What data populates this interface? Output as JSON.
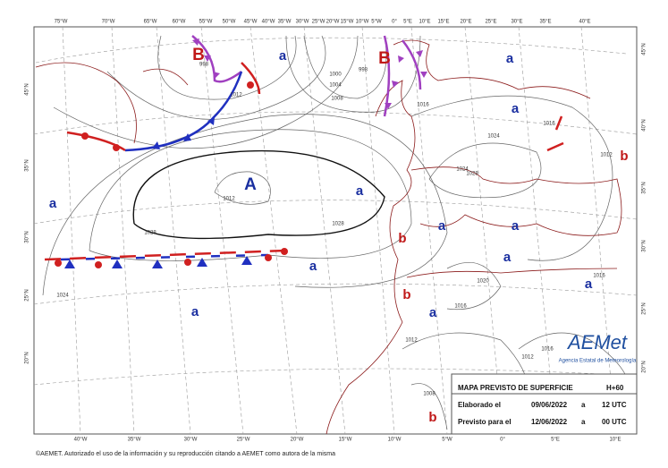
{
  "map": {
    "centers": [
      "B",
      "a",
      "B",
      "a",
      "a",
      "b",
      "A",
      "a",
      "a",
      "a",
      "b",
      "a",
      "a",
      "a",
      "b",
      "a",
      "a",
      "a",
      "b"
    ],
    "isobar_labels": [
      "998",
      "1000",
      "998",
      "1004",
      "1008",
      "1012",
      "1012",
      "1028",
      "1028",
      "1024",
      "1024",
      "1028",
      "1016",
      "1016",
      "1012",
      "1020",
      "1016",
      "1012",
      "1024",
      "1016",
      "1012",
      "1008",
      "1016"
    ],
    "top_lon": [
      "75°W",
      "70°W",
      "65°W",
      "60°W",
      "55°W",
      "50°W",
      "45°W",
      "40°W",
      "35°W",
      "30°W",
      "25°W",
      "20°W",
      "15°W",
      "10°W",
      "5°W",
      "0°",
      "5°E",
      "10°E",
      "15°E",
      "20°E",
      "25°E",
      "30°E",
      "35°E",
      "40°E"
    ],
    "bottom_lon": [
      "40°W",
      "35°W",
      "30°W",
      "25°W",
      "20°W",
      "15°W",
      "10°W",
      "5°W",
      "0°",
      "5°E",
      "10°E"
    ],
    "left_lat": [
      "45°N",
      "35°N",
      "30°N",
      "25°N",
      "20°N"
    ],
    "right_lat": [
      "45°N",
      "40°N",
      "35°N",
      "30°N",
      "25°N",
      "20°N"
    ]
  },
  "legend": {
    "title": "MAPA PREVISTO DE SUPERFICIE",
    "step": "H+60",
    "made_label": "Elaborado el",
    "made_date": "09/06/2022",
    "made_a": "a",
    "made_time": "12 UTC",
    "valid_label": "Previsto para el",
    "valid_date": "12/06/2022",
    "valid_a": "a",
    "valid_time": "00 UTC"
  },
  "logo": {
    "name": "AEMet",
    "subtitle": "Agencia Estatal de Meteorología"
  },
  "footer": "©AEMET. Autorizado el uso de la información y su reproducción citando a AEMET como autora de la misma"
}
